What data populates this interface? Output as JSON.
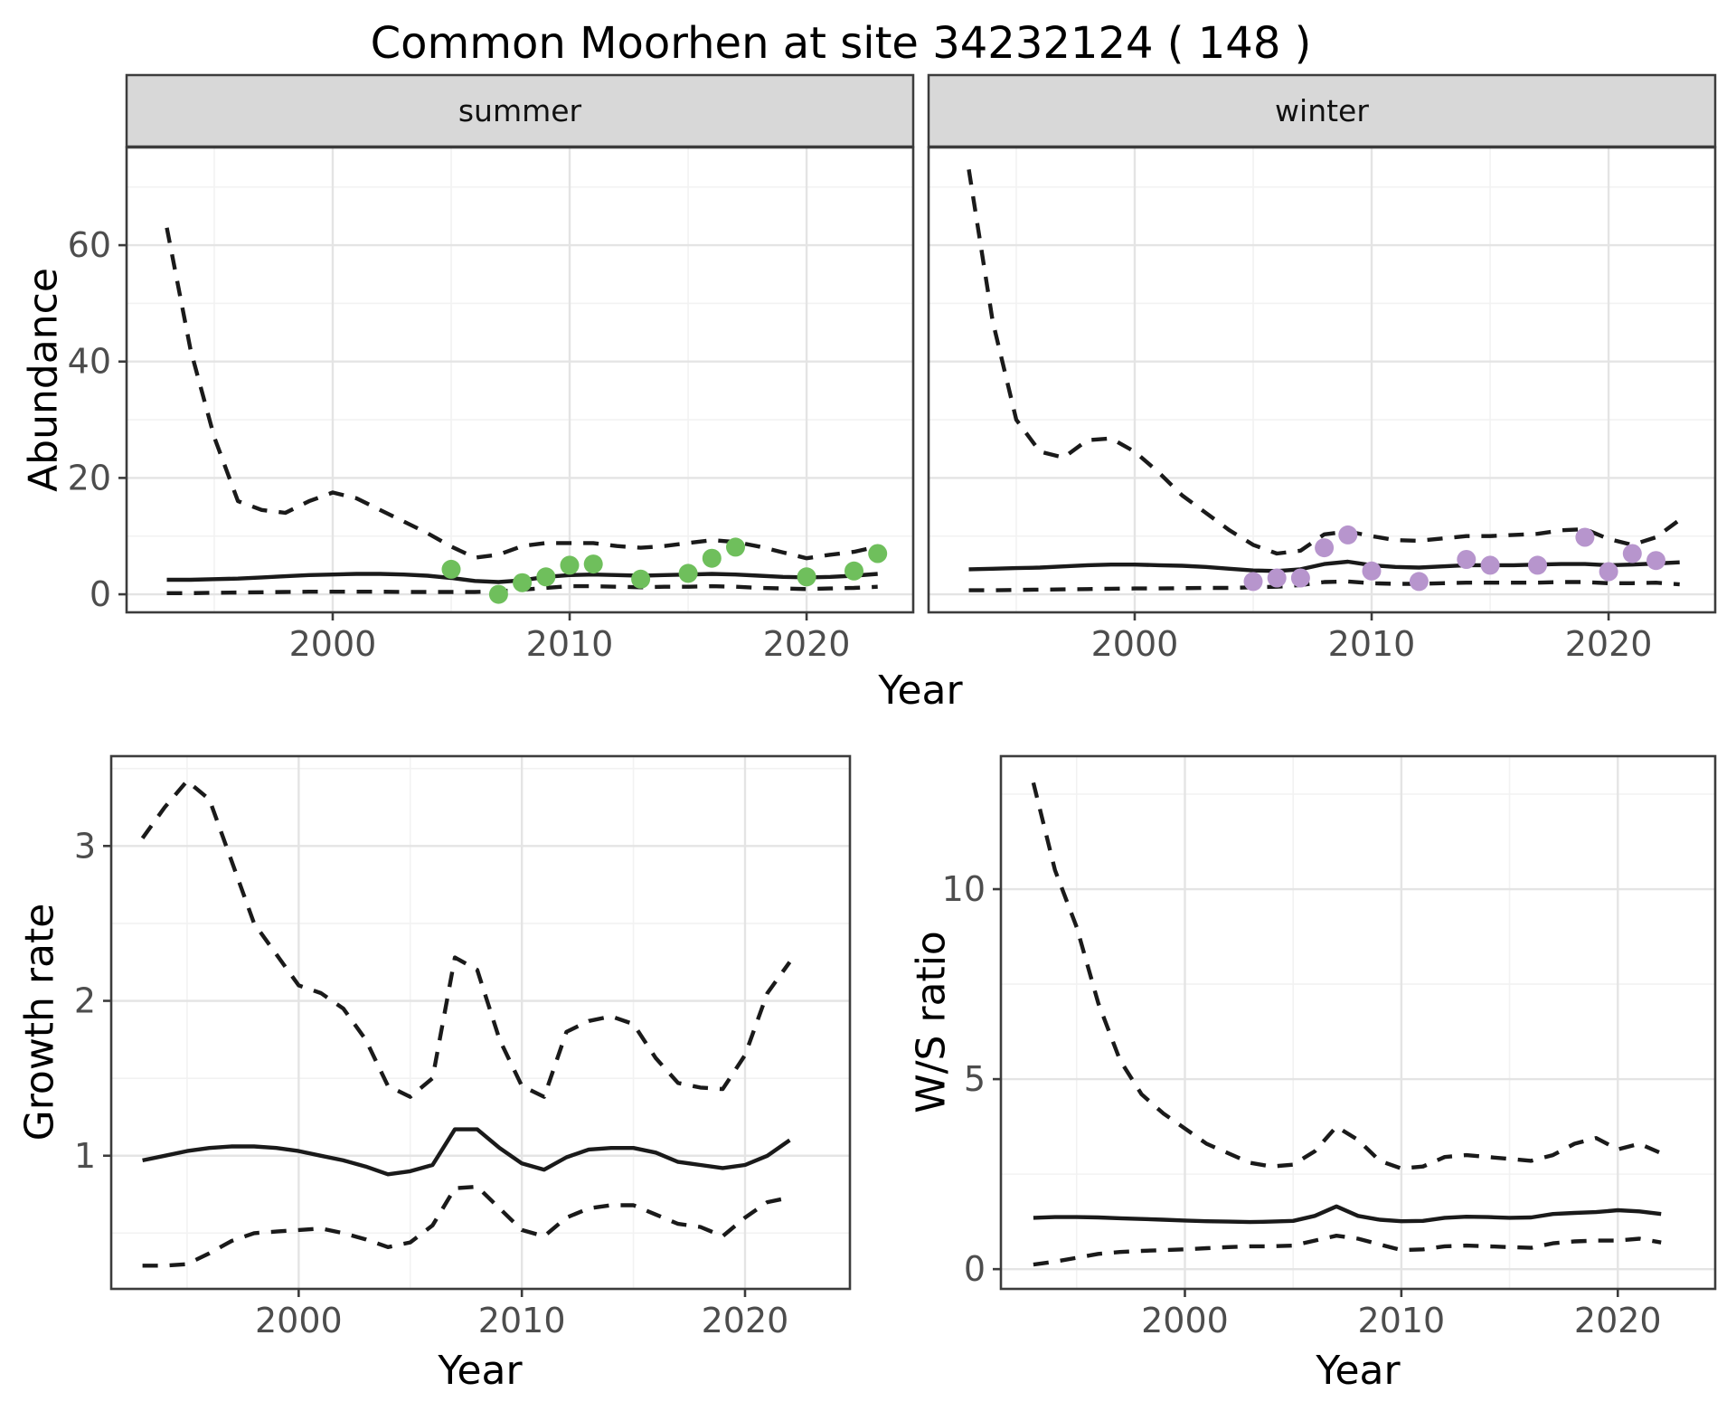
{
  "chart_data": {
    "type": "line",
    "title": "Common Moorhen at site 34232124 ( 148 )",
    "x_label_top": "Year",
    "facets": [
      "summer",
      "winter"
    ],
    "legend_position": "none",
    "grid": true,
    "x_ticks": [
      2000,
      2010,
      2020
    ],
    "x_minor_ticks": [
      1995,
      2005,
      2015,
      2025
    ],
    "colors": {
      "summer_points": "#6FBF5C",
      "winter_points": "#B795CD",
      "lines": "#1A1A1A",
      "strip_fill": "#D8D8D8",
      "tick_text": "#4D4D4D"
    },
    "panels": [
      {
        "id": "summer",
        "facet_label": "summer",
        "y_label": "Abundance",
        "x_label": null,
        "y_ticks": [
          0,
          20,
          40,
          60
        ],
        "y_minor_ticks": [
          10,
          30,
          50,
          70
        ],
        "y_ticks_shown": true,
        "xlim": [
          1991.3,
          2024.5
        ],
        "ylim": [
          -3.1,
          76.8
        ],
        "years": [
          1993,
          1994,
          1995,
          1996,
          1997,
          1998,
          1999,
          2000,
          2001,
          2002,
          2003,
          2004,
          2005,
          2006,
          2007,
          2008,
          2009,
          2010,
          2011,
          2012,
          2013,
          2014,
          2015,
          2016,
          2017,
          2018,
          2019,
          2020,
          2021,
          2022,
          2023
        ],
        "series": [
          {
            "name": "upper_ci",
            "style": "dashed",
            "values": [
              63,
              42,
              27,
              16,
              14.5,
              14,
              16,
              17.5,
              16.5,
              14.5,
              12.5,
              10.5,
              8.2,
              6.3,
              6.8,
              8.3,
              8.8,
              8.8,
              8.8,
              8.3,
              8.0,
              8.3,
              8.8,
              9.3,
              9.0,
              8.2,
              7.2,
              6.2,
              6.8,
              7.3,
              8.2
            ]
          },
          {
            "name": "mean",
            "style": "solid",
            "values": [
              2.5,
              2.5,
              2.6,
              2.7,
              2.9,
              3.1,
              3.3,
              3.4,
              3.5,
              3.5,
              3.4,
              3.2,
              2.8,
              2.3,
              2.1,
              2.4,
              3.0,
              3.3,
              3.4,
              3.3,
              3.2,
              3.3,
              3.4,
              3.5,
              3.4,
              3.2,
              3.0,
              2.9,
              3.0,
              3.2,
              3.5
            ]
          },
          {
            "name": "lower_ci",
            "style": "dashed",
            "values": [
              0.2,
              0.2,
              0.25,
              0.3,
              0.35,
              0.4,
              0.45,
              0.45,
              0.45,
              0.45,
              0.4,
              0.4,
              0.4,
              0.4,
              0.5,
              0.8,
              1.1,
              1.4,
              1.4,
              1.3,
              1.2,
              1.3,
              1.3,
              1.4,
              1.3,
              1.1,
              1.0,
              0.9,
              1.0,
              1.1,
              1.3
            ]
          }
        ],
        "points": {
          "color": "#6FBF5C",
          "years": [
            2005,
            2007,
            2008,
            2009,
            2010,
            2011,
            2013,
            2015,
            2016,
            2017,
            2020,
            2022,
            2023
          ],
          "values": [
            4.3,
            0,
            2,
            3,
            5,
            5.2,
            2.6,
            3.6,
            6.2,
            8.1,
            3,
            4,
            7
          ]
        }
      },
      {
        "id": "winter",
        "facet_label": "winter",
        "y_label": null,
        "x_label": null,
        "y_ticks": [
          0,
          20,
          40,
          60
        ],
        "y_minor_ticks": [
          10,
          30,
          50,
          70
        ],
        "y_ticks_shown": false,
        "xlim": [
          1991.3,
          2024.5
        ],
        "ylim": [
          -3.1,
          76.8
        ],
        "years": [
          1993,
          1994,
          1995,
          1996,
          1997,
          1998,
          1999,
          2000,
          2001,
          2002,
          2003,
          2004,
          2005,
          2006,
          2007,
          2008,
          2009,
          2010,
          2011,
          2012,
          2013,
          2014,
          2015,
          2016,
          2017,
          2018,
          2019,
          2020,
          2021,
          2022,
          2023
        ],
        "series": [
          {
            "name": "upper_ci",
            "style": "dashed",
            "values": [
              73,
              47,
              30,
              24.5,
              23.5,
              26.5,
              26.8,
              24.5,
              21,
              17,
              14,
              11,
              8.5,
              7,
              7.5,
              10.3,
              10.8,
              10,
              9.3,
              9.2,
              9.6,
              10,
              10,
              10.2,
              10.4,
              11,
              11.2,
              9.5,
              8.5,
              9.8,
              12.8
            ]
          },
          {
            "name": "mean",
            "style": "solid",
            "values": [
              4.3,
              4.4,
              4.5,
              4.6,
              4.8,
              5.0,
              5.1,
              5.1,
              5.0,
              4.9,
              4.7,
              4.4,
              4.1,
              4.0,
              4.3,
              5.2,
              5.6,
              5.0,
              4.7,
              4.6,
              4.8,
              5.0,
              5.0,
              5.0,
              5.1,
              5.2,
              5.2,
              5.0,
              5.1,
              5.3,
              5.5
            ]
          },
          {
            "name": "lower_ci",
            "style": "dashed",
            "values": [
              0.7,
              0.7,
              0.75,
              0.8,
              0.85,
              0.9,
              0.95,
              1.0,
              1.0,
              1.05,
              1.1,
              1.1,
              1.2,
              1.3,
              1.6,
              2.1,
              2.2,
              1.9,
              1.8,
              1.8,
              1.9,
              2.0,
              2.0,
              2.0,
              2.0,
              2.1,
              2.1,
              1.9,
              1.9,
              2.0,
              1.7
            ]
          }
        ],
        "points": {
          "color": "#B795CD",
          "years": [
            2005,
            2006,
            2007,
            2008,
            2009,
            2010,
            2012,
            2014,
            2015,
            2017,
            2019,
            2020,
            2021,
            2022
          ],
          "values": [
            2.2,
            2.8,
            2.8,
            8,
            10.2,
            4,
            2.2,
            6,
            5,
            5,
            9.8,
            3.9,
            7,
            5.8
          ]
        }
      },
      {
        "id": "growth",
        "facet_label": null,
        "y_label": "Growth rate",
        "x_label": "Year",
        "y_ticks": [
          1,
          2,
          3
        ],
        "y_minor_ticks": [
          0.5,
          1.5,
          2.5,
          3.5
        ],
        "y_ticks_shown": true,
        "xlim": [
          1991.6,
          2024.7
        ],
        "ylim": [
          0.14,
          3.58
        ],
        "years": [
          1993,
          1994,
          1995,
          1996,
          1997,
          1998,
          1999,
          2000,
          2001,
          2002,
          2003,
          2004,
          2005,
          2006,
          2007,
          2008,
          2009,
          2010,
          2011,
          2012,
          2013,
          2014,
          2015,
          2016,
          2017,
          2018,
          2019,
          2020,
          2021,
          2022
        ],
        "series": [
          {
            "name": "upper_ci",
            "style": "dashed",
            "values": [
              3.05,
              3.25,
              3.42,
              3.3,
              2.9,
              2.5,
              2.3,
              2.1,
              2.05,
              1.95,
              1.75,
              1.45,
              1.38,
              1.5,
              2.28,
              2.2,
              1.75,
              1.45,
              1.38,
              1.8,
              1.87,
              1.9,
              1.85,
              1.63,
              1.47,
              1.44,
              1.43,
              1.65,
              2.05,
              2.25
            ]
          },
          {
            "name": "mean",
            "style": "solid",
            "values": [
              0.97,
              1.0,
              1.03,
              1.05,
              1.06,
              1.06,
              1.05,
              1.03,
              1.0,
              0.97,
              0.93,
              0.88,
              0.9,
              0.94,
              1.17,
              1.17,
              1.05,
              0.95,
              0.91,
              0.99,
              1.04,
              1.05,
              1.05,
              1.02,
              0.96,
              0.94,
              0.92,
              0.94,
              1.0,
              1.1
            ]
          },
          {
            "name": "lower_ci",
            "style": "dashed",
            "values": [
              0.29,
              0.29,
              0.3,
              0.37,
              0.45,
              0.5,
              0.51,
              0.52,
              0.53,
              0.5,
              0.46,
              0.41,
              0.44,
              0.55,
              0.79,
              0.8,
              0.66,
              0.52,
              0.48,
              0.6,
              0.66,
              0.68,
              0.68,
              0.62,
              0.56,
              0.54,
              0.48,
              0.6,
              0.7,
              0.73
            ]
          }
        ],
        "points": null
      },
      {
        "id": "ws",
        "facet_label": null,
        "y_label": "W/S ratio",
        "x_label": "Year",
        "y_ticks": [
          0,
          5,
          10
        ],
        "y_minor_ticks": [
          2.5,
          7.5,
          12.5
        ],
        "y_ticks_shown": true,
        "xlim": [
          1991.5,
          2024.5
        ],
        "ylim": [
          -0.52,
          13.5
        ],
        "years": [
          1993,
          1994,
          1995,
          1996,
          1997,
          1998,
          1999,
          2000,
          2001,
          2002,
          2003,
          2004,
          2005,
          2006,
          2007,
          2008,
          2009,
          2010,
          2011,
          2012,
          2013,
          2014,
          2015,
          2016,
          2017,
          2018,
          2019,
          2020,
          2021,
          2022
        ],
        "series": [
          {
            "name": "upper_ci",
            "style": "dashed",
            "values": [
              12.8,
              10.5,
              9.0,
              7.0,
              5.5,
              4.6,
              4.1,
              3.7,
              3.3,
              3.05,
              2.8,
              2.7,
              2.75,
              3.1,
              3.75,
              3.4,
              2.85,
              2.65,
              2.7,
              2.95,
              3.0,
              2.95,
              2.9,
              2.85,
              3.0,
              3.3,
              3.45,
              3.15,
              3.3,
              3.05
            ]
          },
          {
            "name": "mean",
            "style": "solid",
            "values": [
              1.35,
              1.37,
              1.37,
              1.36,
              1.34,
              1.32,
              1.3,
              1.28,
              1.26,
              1.25,
              1.24,
              1.25,
              1.27,
              1.4,
              1.65,
              1.4,
              1.3,
              1.26,
              1.27,
              1.35,
              1.38,
              1.37,
              1.35,
              1.36,
              1.45,
              1.48,
              1.5,
              1.55,
              1.52,
              1.45
            ]
          },
          {
            "name": "lower_ci",
            "style": "dashed",
            "values": [
              0.12,
              0.2,
              0.3,
              0.4,
              0.45,
              0.48,
              0.5,
              0.52,
              0.55,
              0.58,
              0.6,
              0.6,
              0.62,
              0.75,
              0.88,
              0.8,
              0.65,
              0.5,
              0.52,
              0.6,
              0.62,
              0.6,
              0.58,
              0.56,
              0.68,
              0.73,
              0.75,
              0.75,
              0.8,
              0.7
            ]
          }
        ],
        "points": null
      }
    ]
  }
}
